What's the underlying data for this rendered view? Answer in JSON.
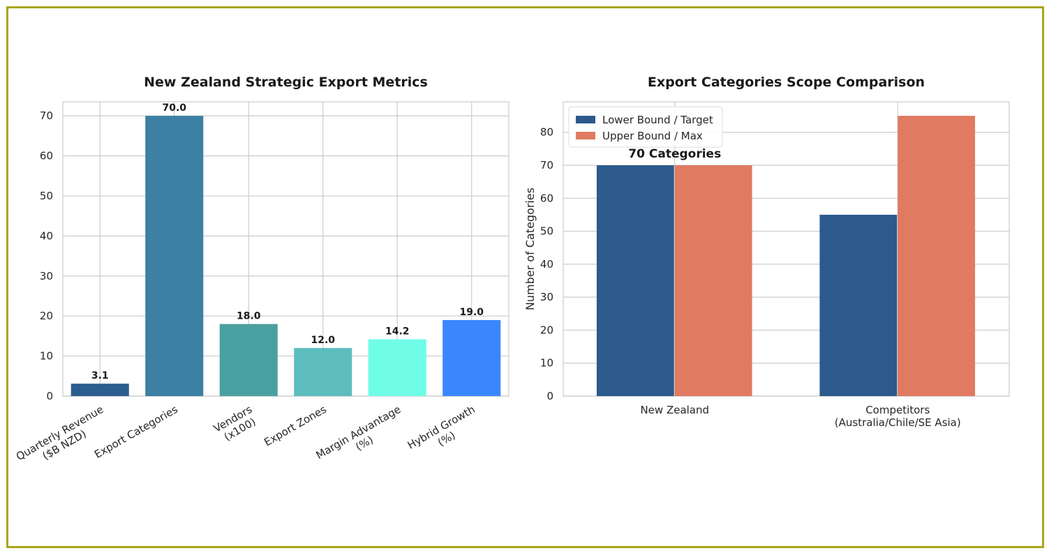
{
  "chart_data": [
    {
      "type": "bar",
      "title": "New Zealand Strategic Export Metrics",
      "xlabel": "",
      "ylabel": "",
      "categories": [
        [
          "Quarterly Revenue",
          "($B NZD)"
        ],
        [
          "Export Categories"
        ],
        [
          "Vendors",
          "(x100)"
        ],
        [
          "Export Zones"
        ],
        [
          "Margin Advantage",
          "(%)"
        ],
        [
          "Hybrid Growth",
          "(%)"
        ]
      ],
      "values": [
        3.1,
        70.0,
        18.0,
        12.0,
        14.2,
        19.0
      ],
      "value_labels": [
        "3.1",
        "70.0",
        "18.0",
        "12.0",
        "14.2",
        "19.0"
      ],
      "colors": [
        "#2c5d8f",
        "#3d80a3",
        "#4aa0a0",
        "#5dbdbd",
        "#70fde8",
        "#3a87fd"
      ],
      "ylim": [
        0,
        73.5
      ],
      "yticks": [
        0,
        10,
        20,
        30,
        40,
        50,
        60,
        70
      ],
      "grid": true
    },
    {
      "type": "bar",
      "title": "Export Categories Scope Comparison",
      "xlabel": "",
      "ylabel": "Number of Categories",
      "categories": [
        [
          "New Zealand"
        ],
        [
          "Competitors",
          "(Australia/Chile/SE Asia)"
        ]
      ],
      "series": [
        {
          "name": "Lower Bound / Target",
          "values": [
            70,
            55
          ],
          "color": "#2c5a8c"
        },
        {
          "name": "Upper Bound / Max",
          "values": [
            70,
            85
          ],
          "color": "#e07a60"
        }
      ],
      "annotations": [
        {
          "category": "New Zealand",
          "text": "70 Categories"
        }
      ],
      "ylim": [
        0,
        89.25
      ],
      "yticks": [
        0,
        10,
        20,
        30,
        40,
        50,
        60,
        70,
        80
      ],
      "legend": "top-left",
      "grid": true
    }
  ]
}
